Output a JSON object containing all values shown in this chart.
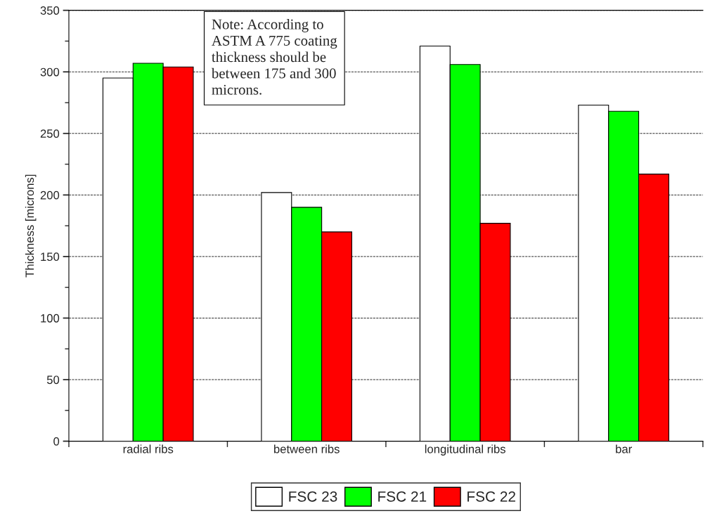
{
  "chart_data": {
    "type": "bar",
    "categories": [
      "radial ribs",
      "between ribs",
      "longitudinal ribs",
      "bar"
    ],
    "series": [
      {
        "name": "FSC 23",
        "color": "#ffffff",
        "values": [
          295,
          202,
          321,
          273
        ]
      },
      {
        "name": "FSC 21",
        "color": "#00ff00",
        "values": [
          307,
          190,
          306,
          268
        ]
      },
      {
        "name": "FSC 22",
        "color": "#ff0000",
        "values": [
          304,
          170,
          177,
          217
        ]
      }
    ],
    "ylabel": "Thickness [microns]",
    "ylim": [
      0,
      350
    ],
    "yticks": [
      0,
      50,
      100,
      150,
      200,
      250,
      300,
      350
    ],
    "grid": "y",
    "legend": "bottom",
    "annotations": [
      "Note: According to\nASTM A 775 coating\nthickness should be\nbetween 175 and 300\nmicrons."
    ]
  }
}
